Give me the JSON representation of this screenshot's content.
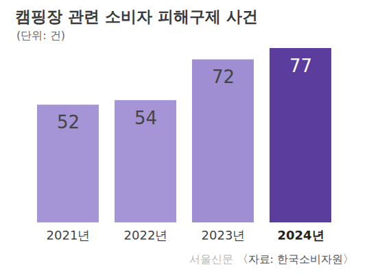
{
  "chart_data": {
    "type": "bar",
    "title": "캠핑장 관련 소비자 피해구제 사건",
    "subtitle": "(단위: 건)",
    "categories": [
      "2021년",
      "2022년",
      "2023년",
      "2024년"
    ],
    "values": [
      52,
      54,
      72,
      77
    ],
    "colors": [
      "#a595d6",
      "#a595d6",
      "#9f8fd2",
      "#5b3d9e"
    ],
    "ylim": [
      0,
      77
    ],
    "data_labels": true,
    "tick_labels": "x",
    "grid": false,
    "source": "〈자료: 한국소비자원〉",
    "watermark": "서울신문"
  }
}
